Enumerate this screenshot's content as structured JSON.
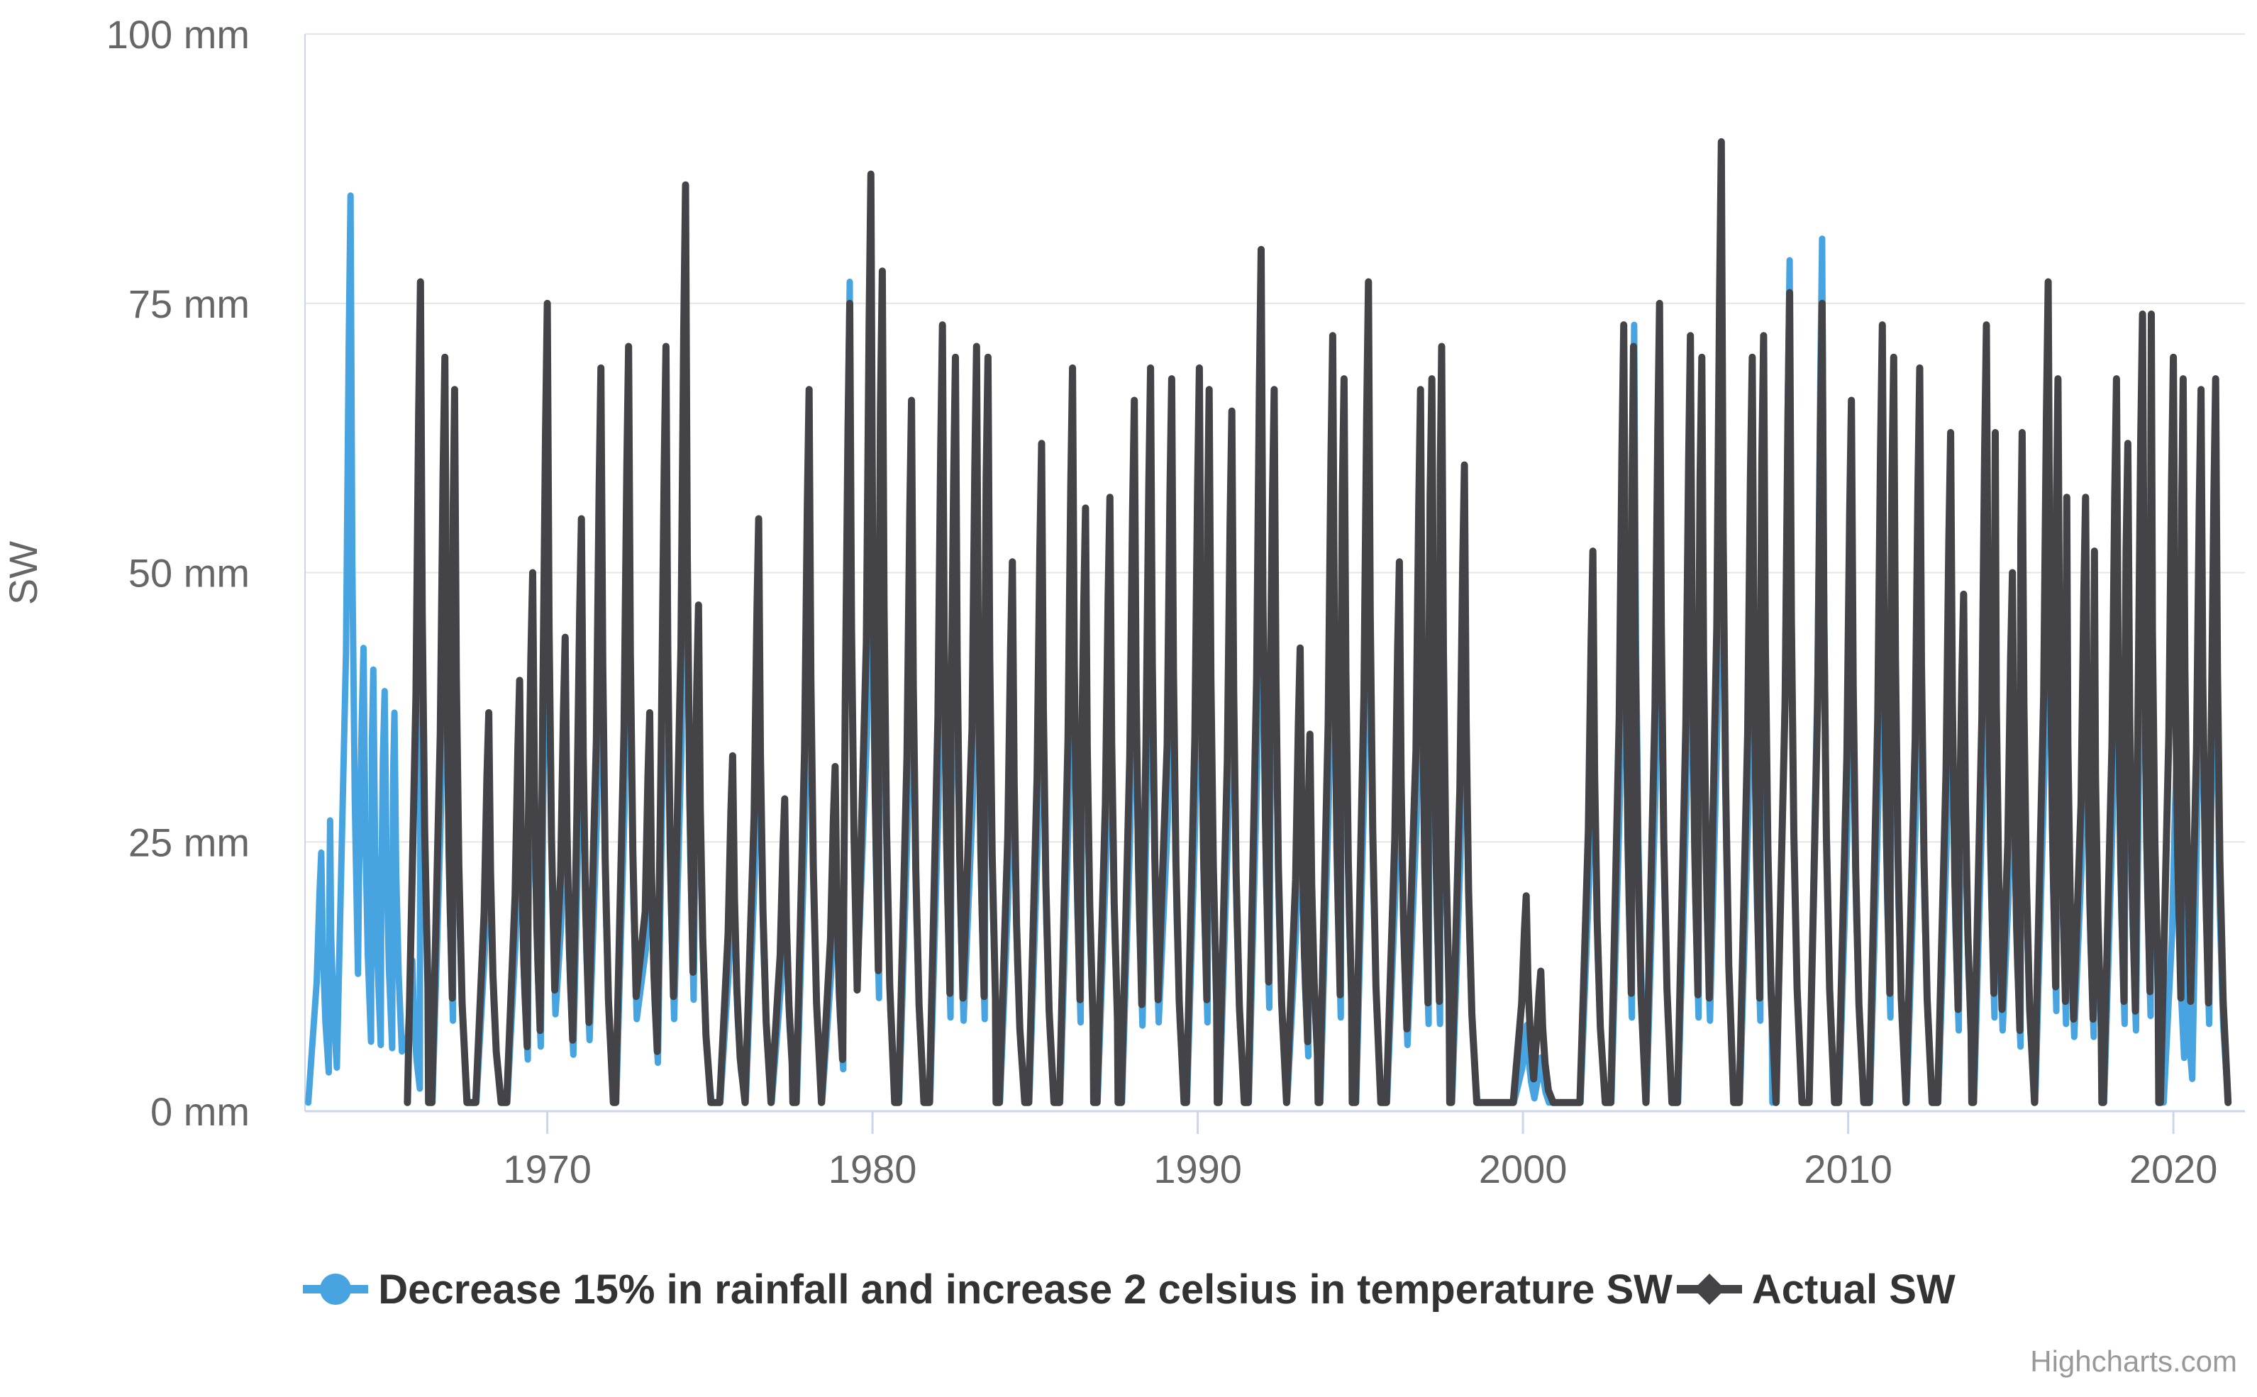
{
  "credits": "Highcharts.com",
  "legend": {
    "items": [
      {
        "label": "Decrease 15% in rainfall and increase 2 celsius in temperature SW",
        "marker": "circle-on-line",
        "color": "#47a4e0"
      },
      {
        "label": "Actual SW",
        "marker": "diamond-on-line",
        "color": "#434348"
      }
    ]
  },
  "colors": {
    "scenario_blue": "#47a4e0",
    "actual_dark": "#434348",
    "gridline": "#e6e6e6",
    "axis_line": "#ccd6eb",
    "tick_label": "#666666",
    "legend_text": "#333333",
    "credits_text": "#999999",
    "background": "#ffffff"
  },
  "chart_data": {
    "type": "line",
    "title": "",
    "xlabel": "",
    "ylabel": "SW",
    "unit": "mm",
    "grid": true,
    "legend_position": "bottom-center",
    "x_range": [
      1962.55,
      2022.2
    ],
    "y_range": [
      0,
      100
    ],
    "baseline_mm": 0.8,
    "y_ticks": [
      {
        "value": 0,
        "label": "0 mm"
      },
      {
        "value": 25,
        "label": "25 mm"
      },
      {
        "value": 50,
        "label": "50 mm"
      },
      {
        "value": 75,
        "label": "75 mm"
      },
      {
        "value": 100,
        "label": "100 mm"
      }
    ],
    "x_ticks": [
      {
        "value": 1970,
        "label": "1970"
      },
      {
        "value": 1980,
        "label": "1980"
      },
      {
        "value": 1990,
        "label": "1990"
      },
      {
        "value": 2000,
        "label": "2000"
      },
      {
        "value": 2010,
        "label": "2010"
      },
      {
        "value": 2020,
        "label": "2020"
      }
    ],
    "series": [
      {
        "name": "Decrease 15% in rainfall and increase 2 celsius in temperature SW",
        "color": "#47a4e0",
        "marker": "circle",
        "line_width": 9,
        "spikes": [
          [
            1963.05,
            24
          ],
          [
            1963.3,
            27
          ],
          [
            1963.95,
            85
          ],
          [
            1964.35,
            43
          ],
          [
            1964.65,
            41
          ],
          [
            1965.0,
            39
          ],
          [
            1965.3,
            37
          ],
          [
            1965.85,
            14
          ],
          [
            1966.12,
            62
          ],
          [
            1966.87,
            56
          ],
          [
            1967.17,
            54
          ],
          [
            1968.22,
            30
          ],
          [
            1969.17,
            32
          ],
          [
            1969.57,
            40
          ],
          [
            1970.02,
            60
          ],
          [
            1970.57,
            35
          ],
          [
            1971.07,
            44
          ],
          [
            1971.67,
            55
          ],
          [
            1972.52,
            57
          ],
          [
            1973.17,
            30
          ],
          [
            1973.67,
            57
          ],
          [
            1974.27,
            69
          ],
          [
            1974.67,
            38
          ],
          [
            1975.72,
            26
          ],
          [
            1976.52,
            44
          ],
          [
            1977.32,
            23
          ],
          [
            1978.07,
            54
          ],
          [
            1978.87,
            26
          ],
          [
            1979.3,
            77
          ],
          [
            1979.97,
            70
          ],
          [
            1980.32,
            62
          ],
          [
            1981.22,
            53
          ],
          [
            1982.17,
            58
          ],
          [
            1982.57,
            56
          ],
          [
            1983.22,
            57
          ],
          [
            1983.57,
            56
          ],
          [
            1984.32,
            41
          ],
          [
            1985.22,
            50
          ],
          [
            1986.17,
            55
          ],
          [
            1986.57,
            45
          ],
          [
            1987.32,
            46
          ],
          [
            1988.07,
            53
          ],
          [
            1988.57,
            55
          ],
          [
            1989.22,
            54
          ],
          [
            1990.07,
            55
          ],
          [
            1990.37,
            54
          ],
          [
            1991.07,
            52
          ],
          [
            1991.97,
            64
          ],
          [
            1992.37,
            54
          ],
          [
            1993.17,
            34
          ],
          [
            1993.47,
            28
          ],
          [
            1994.17,
            58
          ],
          [
            1994.52,
            54
          ],
          [
            1995.27,
            62
          ],
          [
            1996.22,
            41
          ],
          [
            1996.87,
            54
          ],
          [
            1997.22,
            54
          ],
          [
            1997.52,
            57
          ],
          [
            1998.22,
            48
          ],
          [
            2000.12,
            8
          ],
          [
            2000.57,
            5
          ],
          [
            2002.17,
            42
          ],
          [
            2003.12,
            58
          ],
          [
            2003.42,
            73
          ],
          [
            2004.22,
            60
          ],
          [
            2005.17,
            58
          ],
          [
            2005.52,
            56
          ],
          [
            2006.12,
            72
          ],
          [
            2007.07,
            56
          ],
          [
            2007.42,
            58
          ],
          [
            2008.2,
            79
          ],
          [
            2009.2,
            81
          ],
          [
            2010.12,
            53
          ],
          [
            2011.07,
            58
          ],
          [
            2011.42,
            56
          ],
          [
            2012.22,
            55
          ],
          [
            2013.17,
            50
          ],
          [
            2013.57,
            38
          ],
          [
            2014.27,
            58
          ],
          [
            2014.52,
            50
          ],
          [
            2015.07,
            40
          ],
          [
            2015.37,
            50
          ],
          [
            2016.17,
            62
          ],
          [
            2016.47,
            54
          ],
          [
            2016.72,
            46
          ],
          [
            2017.32,
            46
          ],
          [
            2017.57,
            42
          ],
          [
            2018.27,
            54
          ],
          [
            2018.62,
            50
          ],
          [
            2019.07,
            59
          ],
          [
            2019.32,
            59
          ],
          [
            2020.1,
            33
          ],
          [
            2020.35,
            20
          ],
          [
            2020.87,
            54
          ],
          [
            2021.3,
            54
          ]
        ]
      },
      {
        "name": "Actual SW",
        "color": "#434348",
        "marker": "diamond",
        "line_width": 10,
        "spikes": [
          [
            1966.1,
            77
          ],
          [
            1966.85,
            70
          ],
          [
            1967.15,
            67
          ],
          [
            1968.2,
            37
          ],
          [
            1969.15,
            40
          ],
          [
            1969.55,
            50
          ],
          [
            1970.0,
            75
          ],
          [
            1970.55,
            44
          ],
          [
            1971.05,
            55
          ],
          [
            1971.65,
            69
          ],
          [
            1972.5,
            71
          ],
          [
            1973.15,
            37
          ],
          [
            1973.65,
            71
          ],
          [
            1974.25,
            86
          ],
          [
            1974.65,
            47
          ],
          [
            1975.7,
            33
          ],
          [
            1976.5,
            55
          ],
          [
            1977.3,
            29
          ],
          [
            1978.05,
            67
          ],
          [
            1978.85,
            32
          ],
          [
            1979.3,
            75
          ],
          [
            1979.95,
            87
          ],
          [
            1980.3,
            78
          ],
          [
            1981.2,
            66
          ],
          [
            1982.15,
            73
          ],
          [
            1982.55,
            70
          ],
          [
            1983.2,
            71
          ],
          [
            1983.55,
            70
          ],
          [
            1984.3,
            51
          ],
          [
            1985.2,
            62
          ],
          [
            1986.15,
            69
          ],
          [
            1986.55,
            56
          ],
          [
            1987.3,
            57
          ],
          [
            1988.05,
            66
          ],
          [
            1988.55,
            69
          ],
          [
            1989.2,
            68
          ],
          [
            1990.05,
            69
          ],
          [
            1990.35,
            67
          ],
          [
            1991.05,
            65
          ],
          [
            1991.95,
            80
          ],
          [
            1992.35,
            67
          ],
          [
            1993.15,
            43
          ],
          [
            1993.45,
            35
          ],
          [
            1994.15,
            72
          ],
          [
            1994.5,
            68
          ],
          [
            1995.25,
            77
          ],
          [
            1996.2,
            51
          ],
          [
            1996.85,
            67
          ],
          [
            1997.2,
            68
          ],
          [
            1997.5,
            71
          ],
          [
            1998.2,
            60
          ],
          [
            2000.1,
            20
          ],
          [
            2000.55,
            13
          ],
          [
            2002.15,
            52
          ],
          [
            2003.1,
            73
          ],
          [
            2003.4,
            71
          ],
          [
            2004.2,
            75
          ],
          [
            2005.15,
            72
          ],
          [
            2005.5,
            70
          ],
          [
            2006.1,
            90
          ],
          [
            2007.05,
            70
          ],
          [
            2007.4,
            72
          ],
          [
            2008.2,
            76
          ],
          [
            2009.2,
            75
          ],
          [
            2010.1,
            66
          ],
          [
            2011.05,
            73
          ],
          [
            2011.4,
            70
          ],
          [
            2012.2,
            69
          ],
          [
            2013.15,
            63
          ],
          [
            2013.55,
            48
          ],
          [
            2014.25,
            73
          ],
          [
            2014.5,
            63
          ],
          [
            2015.05,
            50
          ],
          [
            2015.35,
            63
          ],
          [
            2016.15,
            77
          ],
          [
            2016.45,
            68
          ],
          [
            2016.7,
            57
          ],
          [
            2017.3,
            57
          ],
          [
            2017.55,
            52
          ],
          [
            2018.25,
            68
          ],
          [
            2018.6,
            62
          ],
          [
            2019.05,
            74
          ],
          [
            2019.3,
            74
          ],
          [
            2020.0,
            70
          ],
          [
            2020.3,
            68
          ],
          [
            2020.85,
            67
          ],
          [
            2021.3,
            68
          ]
        ]
      }
    ]
  }
}
